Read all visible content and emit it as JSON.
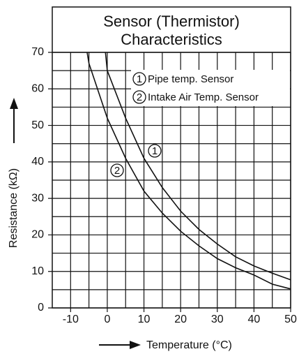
{
  "chart_data": {
    "type": "line",
    "title": [
      "Sensor (Thermistor)",
      "Characteristics"
    ],
    "x_label": "Temperature (°C)",
    "y_label": "Resistance (kΩ)",
    "xlim": [
      -15,
      50
    ],
    "ylim": [
      0,
      70
    ],
    "xticks": [
      -10,
      0,
      10,
      20,
      30,
      40,
      50
    ],
    "yticks": [
      0,
      10,
      20,
      30,
      40,
      50,
      60,
      70
    ],
    "grid": true,
    "minor_grid": true,
    "legend": "upper right",
    "series": [
      {
        "name": "Pipe temp. Sensor",
        "marker": "1",
        "color": "#111111",
        "x": [
          -0.5,
          0,
          5,
          10,
          15,
          20,
          25,
          30,
          35,
          40,
          45,
          50
        ],
        "values": [
          70,
          65,
          52,
          41,
          33,
          26.5,
          21.5,
          17.5,
          14,
          11.5,
          9.5,
          7.7
        ]
      },
      {
        "name": "Intake Air Temp. Sensor",
        "marker": "2",
        "color": "#111111",
        "x": [
          -5.5,
          -5,
          0,
          5,
          10,
          15,
          20,
          25,
          30,
          35,
          40,
          45,
          50
        ],
        "values": [
          70,
          67,
          52,
          41,
          32,
          26,
          21,
          17,
          13.5,
          11,
          9,
          6.5,
          5.2
        ]
      }
    ]
  }
}
